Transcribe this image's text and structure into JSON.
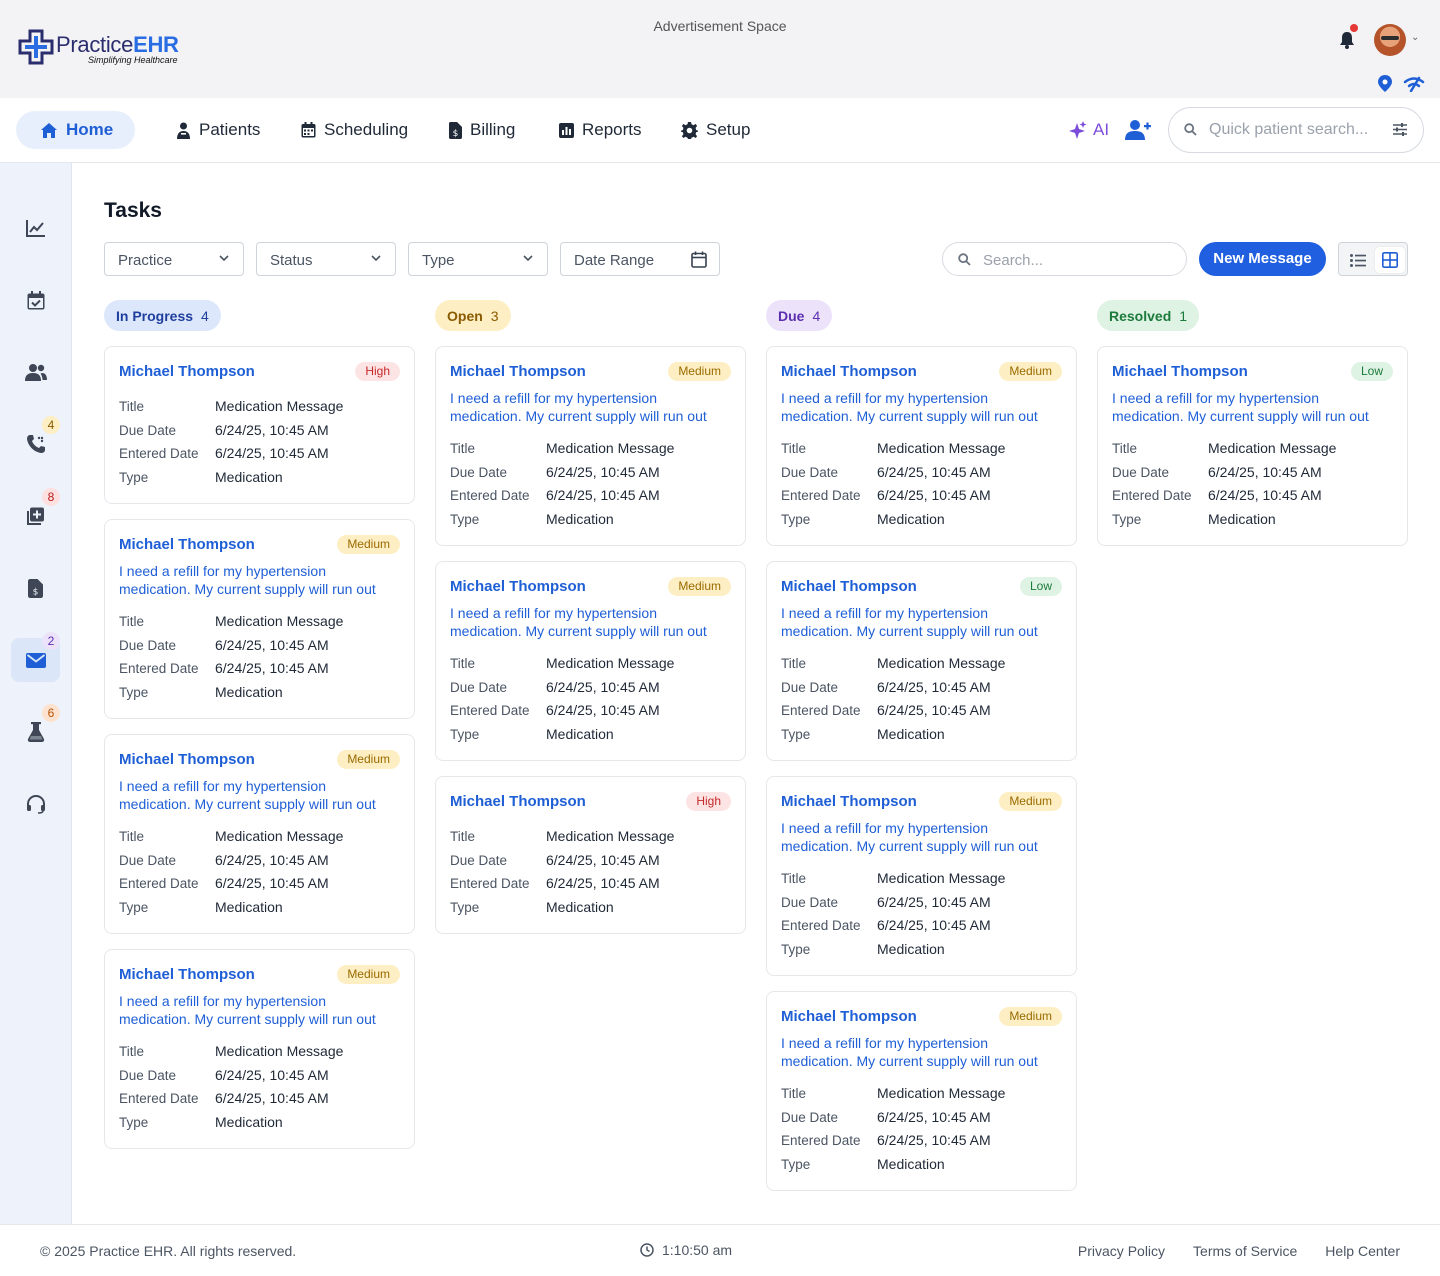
{
  "header": {
    "logo_main": "Practice",
    "logo_accent": "EHR",
    "logo_tagline": "Simplifying Healthcare",
    "ad_space": "Advertisement Space"
  },
  "nav": {
    "items": [
      {
        "label": "Home",
        "icon": "home-icon"
      },
      {
        "label": "Patients",
        "icon": "patient-icon"
      },
      {
        "label": "Scheduling",
        "icon": "calendar-icon"
      },
      {
        "label": "Billing",
        "icon": "billing-icon"
      },
      {
        "label": "Reports",
        "icon": "reports-icon"
      },
      {
        "label": "Setup",
        "icon": "gear-icon"
      }
    ],
    "ai_label": "AI",
    "quick_search_placeholder": "Quick patient search..."
  },
  "sidebar": {
    "badges": {
      "calls": "4",
      "labs_orders": "8",
      "messages": "2",
      "lab": "6"
    }
  },
  "page": {
    "title": "Tasks",
    "filters": {
      "practice": "Practice",
      "status": "Status",
      "type": "Type",
      "date_range": "Date Range"
    },
    "search_placeholder": "Search...",
    "new_message": "New Message"
  },
  "field_labels": {
    "title": "Title",
    "due": "Due Date",
    "entered": "Entered Date",
    "type": "Type"
  },
  "columns": [
    {
      "label": "In Progress",
      "count": "4",
      "cards": [
        {
          "name": "Michael Thompson",
          "priority": "High",
          "message": "",
          "title": "Medication Message",
          "due": "6/24/25, 10:45 AM",
          "entered": "6/24/25, 10:45 AM",
          "type": "Medication"
        },
        {
          "name": "Michael Thompson",
          "priority": "Medium",
          "message": "I need a refill for my hypertension medication. My current supply will run out",
          "title": "Medication Message",
          "due": "6/24/25, 10:45 AM",
          "entered": "6/24/25, 10:45 AM",
          "type": "Medication"
        },
        {
          "name": "Michael Thompson",
          "priority": "Medium",
          "message": "I need a refill for my hypertension medication. My current supply will run out",
          "title": "Medication Message",
          "due": "6/24/25, 10:45 AM",
          "entered": "6/24/25, 10:45 AM",
          "type": "Medication"
        },
        {
          "name": "Michael Thompson",
          "priority": "Medium",
          "message": "I need a refill for my hypertension medication. My current supply will run out",
          "title": "Medication Message",
          "due": "6/24/25, 10:45 AM",
          "entered": "6/24/25, 10:45 AM",
          "type": "Medication"
        }
      ]
    },
    {
      "label": "Open",
      "count": "3",
      "cards": [
        {
          "name": "Michael Thompson",
          "priority": "Medium",
          "message": "I need a refill for my hypertension medication. My current supply will run out",
          "title": "Medication Message",
          "due": "6/24/25, 10:45 AM",
          "entered": "6/24/25, 10:45 AM",
          "type": "Medication"
        },
        {
          "name": "Michael Thompson",
          "priority": "Medium",
          "message": "I need a refill for my hypertension medication. My current supply will run out",
          "title": "Medication Message",
          "due": "6/24/25, 10:45 AM",
          "entered": "6/24/25, 10:45 AM",
          "type": "Medication"
        },
        {
          "name": "Michael Thompson",
          "priority": "High",
          "message": "",
          "title": "Medication Message",
          "due": "6/24/25, 10:45 AM",
          "entered": "6/24/25, 10:45 AM",
          "type": "Medication"
        }
      ]
    },
    {
      "label": "Due",
      "count": "4",
      "cards": [
        {
          "name": "Michael Thompson",
          "priority": "Medium",
          "message": "I need a refill for my hypertension medication. My current supply will run out",
          "title": "Medication Message",
          "due": "6/24/25, 10:45 AM",
          "entered": "6/24/25, 10:45 AM",
          "type": "Medication"
        },
        {
          "name": "Michael Thompson",
          "priority": "Low",
          "message": "I need a refill for my hypertension medication. My current supply will run out",
          "title": "Medication Message",
          "due": "6/24/25, 10:45 AM",
          "entered": "6/24/25, 10:45 AM",
          "type": "Medication"
        },
        {
          "name": "Michael Thompson",
          "priority": "Medium",
          "message": "I need a refill for my hypertension medication. My current supply will run out",
          "title": "Medication Message",
          "due": "6/24/25, 10:45 AM",
          "entered": "6/24/25, 10:45 AM",
          "type": "Medication"
        },
        {
          "name": "Michael Thompson",
          "priority": "Medium",
          "message": "I need a refill for my hypertension medication. My current supply will run out",
          "title": "Medication Message",
          "due": "6/24/25, 10:45 AM",
          "entered": "6/24/25, 10:45 AM",
          "type": "Medication"
        }
      ]
    },
    {
      "label": "Resolved",
      "count": "1",
      "cards": [
        {
          "name": "Michael Thompson",
          "priority": "Low",
          "message": "I need a refill for my hypertension medication. My current supply will run out",
          "title": "Medication Message",
          "due": "6/24/25, 10:45 AM",
          "entered": "6/24/25, 10:45 AM",
          "type": "Medication"
        }
      ]
    }
  ],
  "column_colors": {
    "In Progress": {
      "bg": "#dde7fb",
      "fg": "#1f3f9e"
    },
    "Open": {
      "bg": "#fdefc3",
      "fg": "#8a5a00"
    },
    "Due": {
      "bg": "#ece3fb",
      "fg": "#5b2fb0"
    },
    "Resolved": {
      "bg": "#dff3e4",
      "fg": "#1c7a3c"
    }
  },
  "footer": {
    "copyright": "© 2025 Practice EHR. All rights reserved.",
    "time": "1:10:50 am",
    "links": [
      "Privacy Policy",
      "Terms of Service",
      "Help Center"
    ]
  }
}
